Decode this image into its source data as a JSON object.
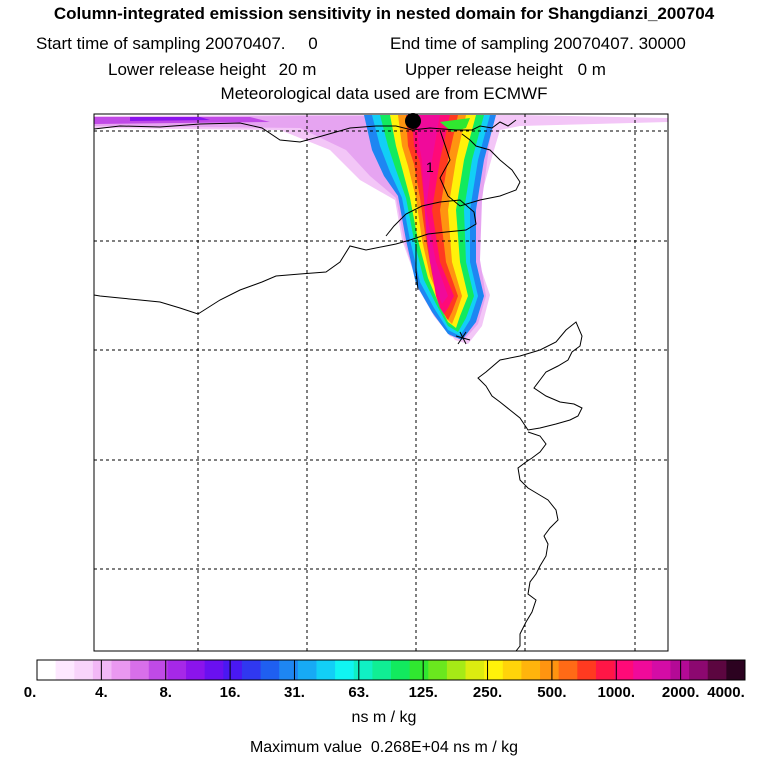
{
  "header": {
    "title": "Column-integrated emission sensitivity in nested domain for Shangdianzi_200704",
    "start_label": "Start time of sampling",
    "start_value": "20070407.",
    "start_hms": "0",
    "end_label": "End time of sampling",
    "end_value": "20070407. 30000",
    "lower_label": "Lower release height",
    "lower_value": "20 m",
    "upper_label": "Upper release height",
    "upper_value": "0 m",
    "met_line": "Meteorological data used are from ECMWF"
  },
  "map": {
    "receptor_marker": "receptor-dot",
    "plume_label": "1"
  },
  "colorbar": {
    "tick_labels": [
      "0.",
      "4.",
      "8.",
      "16.",
      "31.",
      "63.",
      "125.",
      "250.",
      "500.",
      "1000.",
      "2000.",
      "4000."
    ],
    "units": "ns m / kg",
    "colors": [
      "#ffffff",
      "#fde8ff",
      "#f8d4fb",
      "#f2b8f6",
      "#ea98f0",
      "#d86fea",
      "#c04ae6",
      "#a628e8",
      "#8b14ec",
      "#6a10f0",
      "#4a18f2",
      "#3038f0",
      "#1f5ff0",
      "#1e86f2",
      "#17aaf5",
      "#12cff6",
      "#10f5f2",
      "#10f0c4",
      "#10ee94",
      "#12ea5e",
      "#30e830",
      "#6ae81e",
      "#a6ea16",
      "#dcec10",
      "#fff20a",
      "#ffd40a",
      "#ffb40c",
      "#ff9410",
      "#ff6a16",
      "#ff3a20",
      "#ff1646",
      "#ff0a78",
      "#f00a9a",
      "#d40ca6",
      "#b40a96",
      "#8c0870",
      "#5c0640",
      "#2c0220"
    ]
  },
  "footer": {
    "max_label": "Maximum value",
    "max_value": "0.268E+04 ns m / kg"
  },
  "colors": {
    "frame": "#000000",
    "coast": "#000000",
    "grid": "#000000"
  }
}
